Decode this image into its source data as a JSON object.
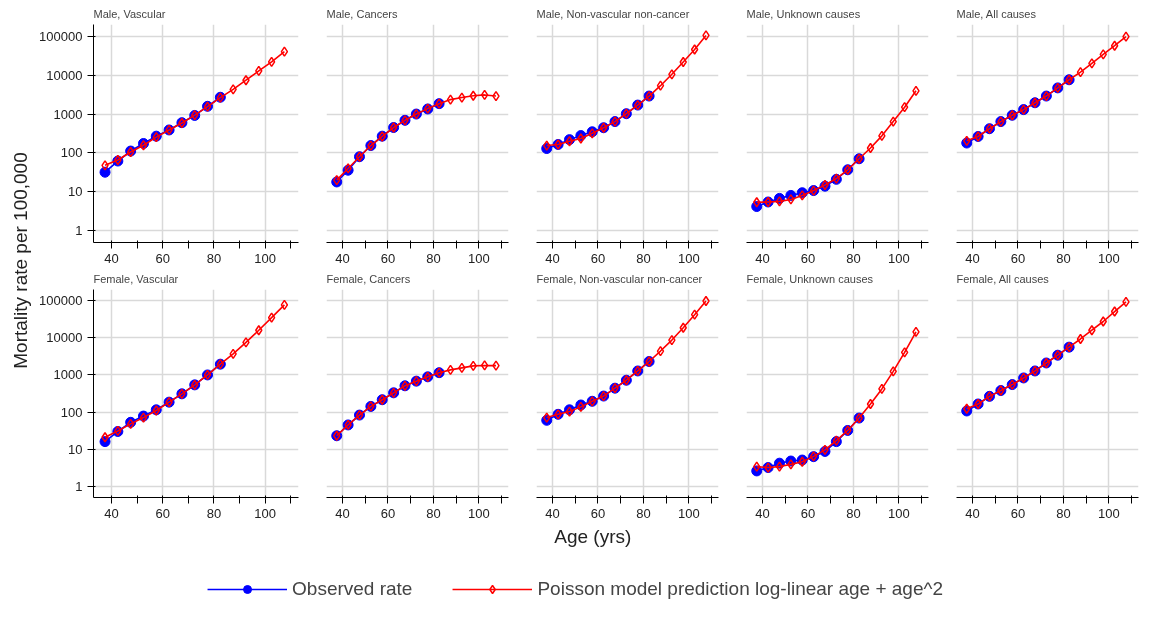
{
  "chart_data": [
    {
      "type": "line",
      "title": "Male, Vascular",
      "ylabel": "Mortality rate per 100,000",
      "log": "y",
      "grid": true,
      "line_style": "solid",
      "xlim": [
        33,
        113
      ],
      "ylim": [
        0.5,
        200000
      ],
      "xticks": [
        40,
        {
          "value": 50,
          "label": null
        },
        60,
        {
          "value": 70,
          "label": null
        },
        80,
        {
          "value": 90,
          "label": null
        },
        100,
        {
          "value": 110,
          "label": null
        }
      ],
      "yticks": [
        1,
        10,
        100,
        1000,
        10000,
        100000
      ],
      "x": [
        37.5,
        42.5,
        47.5,
        52.5,
        57.5,
        62.5,
        67.5,
        72.5,
        77.5,
        82.5,
        87.5,
        92.5,
        97.5,
        102.5,
        107.5
      ],
      "series": [
        {
          "color": "#0000ff",
          "marker": "circle",
          "values": [
            32,
            62,
            112,
            175,
            270,
            390,
            600,
            920,
            1580,
            2700,
            null,
            null,
            null,
            null,
            null
          ]
        },
        {
          "color": "#ff0000",
          "marker": "diamond",
          "values": [
            48,
            66,
            106,
            158,
            255,
            390,
            590,
            940,
            1550,
            2650,
            4300,
            7400,
            12800,
            22000,
            40000
          ]
        }
      ]
    },
    {
      "type": "line",
      "title": "Male, Cancers",
      "log": "y",
      "grid": true,
      "line_style": "solid",
      "tick_labels": "x",
      "xlim": [
        33,
        113
      ],
      "ylim": [
        0.5,
        200000
      ],
      "xticks": [
        40,
        {
          "value": 50,
          "label": null
        },
        60,
        {
          "value": 70,
          "label": null
        },
        80,
        {
          "value": 90,
          "label": null
        },
        100,
        {
          "value": 110,
          "label": null
        }
      ],
      "yticks": [
        1,
        10,
        100,
        1000,
        10000,
        100000
      ],
      "x": [
        37.5,
        42.5,
        47.5,
        52.5,
        57.5,
        62.5,
        67.5,
        72.5,
        77.5,
        82.5,
        87.5,
        92.5,
        97.5,
        102.5,
        107.5
      ],
      "series": [
        {
          "color": "#0000ff",
          "marker": "circle",
          "values": [
            18,
            36,
            80,
            155,
            270,
            450,
            690,
            1000,
            1350,
            1850,
            null,
            null,
            null,
            null,
            null
          ]
        },
        {
          "color": "#ff0000",
          "marker": "diamond",
          "values": [
            20,
            40,
            80,
            155,
            265,
            450,
            690,
            1000,
            1380,
            1850,
            2350,
            2650,
            2950,
            3100,
            2900
          ]
        }
      ]
    },
    {
      "type": "line",
      "title": "Male, Non-vascular non-cancer",
      "log": "y",
      "grid": true,
      "line_style": "solid",
      "tick_labels": "x",
      "xlim": [
        33,
        113
      ],
      "ylim": [
        0.5,
        200000
      ],
      "xticks": [
        40,
        {
          "value": 50,
          "label": null
        },
        60,
        {
          "value": 70,
          "label": null
        },
        80,
        {
          "value": 90,
          "label": null
        },
        100,
        {
          "value": 110,
          "label": null
        }
      ],
      "yticks": [
        1,
        10,
        100,
        1000,
        10000,
        100000
      ],
      "x": [
        37.5,
        42.5,
        47.5,
        52.5,
        57.5,
        62.5,
        67.5,
        72.5,
        77.5,
        82.5,
        87.5,
        92.5,
        97.5,
        102.5,
        107.5
      ],
      "series": [
        {
          "color": "#0000ff",
          "marker": "circle",
          "values": [
            130,
            165,
            220,
            280,
            350,
            445,
            640,
            1020,
            1700,
            2900,
            null,
            null,
            null,
            null,
            null
          ]
        },
        {
          "color": "#ff0000",
          "marker": "diamond",
          "values": [
            155,
            165,
            200,
            235,
            320,
            445,
            640,
            1020,
            1700,
            2900,
            5350,
            10500,
            21700,
            45500,
            105000
          ]
        }
      ]
    },
    {
      "type": "line",
      "title": "Male, Unknown causes",
      "log": "y",
      "grid": true,
      "line_style": "solid",
      "tick_labels": "x",
      "xlim": [
        33,
        113
      ],
      "ylim": [
        0.5,
        200000
      ],
      "xticks": [
        40,
        {
          "value": 50,
          "label": null
        },
        60,
        {
          "value": 70,
          "label": null
        },
        80,
        {
          "value": 90,
          "label": null
        },
        100,
        {
          "value": 110,
          "label": null
        }
      ],
      "yticks": [
        1,
        10,
        100,
        1000,
        10000,
        100000
      ],
      "x": [
        37.5,
        42.5,
        47.5,
        52.5,
        57.5,
        62.5,
        67.5,
        72.5,
        77.5,
        82.5,
        87.5,
        92.5,
        97.5,
        102.5,
        107.5
      ],
      "series": [
        {
          "color": "#0000ff",
          "marker": "circle",
          "values": [
            4.2,
            5.5,
            6.8,
            8.1,
            9.5,
            10.8,
            14,
            21,
            37,
            71,
            null,
            null,
            null,
            null,
            null
          ]
        },
        {
          "color": "#ff0000",
          "marker": "diamond",
          "values": [
            5.4,
            5.5,
            5.7,
            6.4,
            8.1,
            10.8,
            15,
            22,
            37,
            71,
            134,
            275,
            640,
            1500,
            3950
          ]
        }
      ]
    },
    {
      "type": "line",
      "title": "Male, All causes",
      "log": "y",
      "grid": true,
      "line_style": "solid",
      "tick_labels": "x",
      "xlim": [
        33,
        113
      ],
      "ylim": [
        0.5,
        200000
      ],
      "xticks": [
        40,
        {
          "value": 50,
          "label": null
        },
        60,
        {
          "value": 70,
          "label": null
        },
        80,
        {
          "value": 90,
          "label": null
        },
        100,
        {
          "value": 110,
          "label": null
        }
      ],
      "yticks": [
        1,
        10,
        100,
        1000,
        10000,
        100000
      ],
      "x": [
        37.5,
        42.5,
        47.5,
        52.5,
        57.5,
        62.5,
        67.5,
        72.5,
        77.5,
        82.5,
        87.5,
        92.5,
        97.5,
        102.5,
        107.5
      ],
      "series": [
        {
          "color": "#0000ff",
          "marker": "circle",
          "values": [
            180,
            265,
            420,
            640,
            930,
            1300,
            1950,
            2900,
            4700,
            7600,
            null,
            null,
            null,
            null,
            null
          ]
        },
        {
          "color": "#ff0000",
          "marker": "diamond",
          "values": [
            205,
            265,
            420,
            640,
            930,
            1300,
            1950,
            2900,
            4700,
            7600,
            12000,
            20000,
            34000,
            57000,
            98000
          ]
        }
      ]
    },
    {
      "type": "line",
      "title": "Female, Vascular",
      "log": "y",
      "grid": true,
      "line_style": "solid",
      "xlim": [
        33,
        113
      ],
      "ylim": [
        0.5,
        200000
      ],
      "xticks": [
        40,
        {
          "value": 50,
          "label": null
        },
        60,
        {
          "value": 70,
          "label": null
        },
        80,
        {
          "value": 90,
          "label": null
        },
        100,
        {
          "value": 110,
          "label": null
        }
      ],
      "yticks": [
        1,
        10,
        100,
        1000,
        10000,
        100000
      ],
      "x": [
        37.5,
        42.5,
        47.5,
        52.5,
        57.5,
        62.5,
        67.5,
        72.5,
        77.5,
        82.5,
        87.5,
        92.5,
        97.5,
        102.5,
        107.5
      ],
      "series": [
        {
          "color": "#0000ff",
          "marker": "circle",
          "values": [
            16,
            30,
            53,
            78,
            115,
            185,
            310,
            540,
            1000,
            1950,
            null,
            null,
            null,
            null,
            null
          ]
        },
        {
          "color": "#ff0000",
          "marker": "diamond",
          "values": [
            21,
            31,
            48,
            71,
            110,
            185,
            310,
            540,
            1000,
            1950,
            3700,
            7500,
            16000,
            35000,
            77000
          ]
        }
      ]
    },
    {
      "type": "line",
      "title": "Female, Cancers",
      "log": "y",
      "grid": true,
      "line_style": "solid",
      "tick_labels": "x",
      "xlim": [
        33,
        113
      ],
      "ylim": [
        0.5,
        200000
      ],
      "xticks": [
        40,
        {
          "value": 50,
          "label": null
        },
        60,
        {
          "value": 70,
          "label": null
        },
        80,
        {
          "value": 90,
          "label": null
        },
        100,
        {
          "value": 110,
          "label": null
        }
      ],
      "yticks": [
        1,
        10,
        100,
        1000,
        10000,
        100000
      ],
      "x": [
        37.5,
        42.5,
        47.5,
        52.5,
        57.5,
        62.5,
        67.5,
        72.5,
        77.5,
        82.5,
        87.5,
        92.5,
        97.5,
        102.5,
        107.5
      ],
      "series": [
        {
          "color": "#0000ff",
          "marker": "circle",
          "values": [
            23,
            45,
            83,
            142,
            215,
            330,
            510,
            680,
            890,
            1150,
            null,
            null,
            null,
            null,
            null
          ]
        },
        {
          "color": "#ff0000",
          "marker": "diamond",
          "values": [
            23,
            45,
            83,
            142,
            215,
            330,
            510,
            680,
            890,
            1150,
            1370,
            1550,
            1750,
            1800,
            1780
          ]
        }
      ]
    },
    {
      "type": "line",
      "title": "Female, Non-vascular non-cancer",
      "xlabel": "Age (yrs)",
      "legend": "bottom",
      "log": "y",
      "grid": true,
      "line_style": "solid",
      "tick_labels": "x",
      "xlim": [
        33,
        113
      ],
      "ylim": [
        0.5,
        200000
      ],
      "xticks": [
        40,
        {
          "value": 50,
          "label": null
        },
        60,
        {
          "value": 70,
          "label": null
        },
        80,
        {
          "value": 90,
          "label": null
        },
        100,
        {
          "value": 110,
          "label": null
        }
      ],
      "yticks": [
        1,
        10,
        100,
        1000,
        10000,
        100000
      ],
      "x": [
        37.5,
        42.5,
        47.5,
        52.5,
        57.5,
        62.5,
        67.5,
        72.5,
        77.5,
        82.5,
        87.5,
        92.5,
        97.5,
        102.5,
        107.5
      ],
      "series": [
        {
          "name": "Observed rate",
          "color": "#0000ff",
          "marker": "circle",
          "values": [
            60,
            87,
            115,
            155,
            195,
            270,
            440,
            720,
            1280,
            2300,
            null,
            null,
            null,
            null,
            null
          ]
        },
        {
          "name": "Poisson model prediction log-linear age + age^2",
          "color": "#ff0000",
          "marker": "diamond",
          "values": [
            71,
            87,
            103,
            138,
            195,
            270,
            440,
            720,
            1280,
            2300,
            4400,
            8700,
            18700,
            42000,
            98000
          ]
        }
      ]
    },
    {
      "type": "line",
      "title": "Female, Unknown causes",
      "log": "y",
      "grid": true,
      "line_style": "solid",
      "tick_labels": "x",
      "xlim": [
        33,
        113
      ],
      "ylim": [
        0.5,
        200000
      ],
      "xticks": [
        40,
        {
          "value": 50,
          "label": null
        },
        60,
        {
          "value": 70,
          "label": null
        },
        80,
        {
          "value": 90,
          "label": null
        },
        100,
        {
          "value": 110,
          "label": null
        }
      ],
      "yticks": [
        1,
        10,
        100,
        1000,
        10000,
        100000
      ],
      "x": [
        37.5,
        42.5,
        47.5,
        52.5,
        57.5,
        62.5,
        67.5,
        72.5,
        77.5,
        82.5,
        87.5,
        92.5,
        97.5,
        102.5,
        107.5
      ],
      "series": [
        {
          "color": "#0000ff",
          "marker": "circle",
          "values": [
            2.6,
            3.2,
            4.2,
            4.8,
            5.1,
            6.3,
            8.7,
            16,
            32,
            69,
            null,
            null,
            null,
            null,
            null
          ]
        },
        {
          "color": "#ff0000",
          "marker": "diamond",
          "values": [
            3.4,
            3.2,
            3.4,
            3.9,
            4.6,
            6.4,
            9.6,
            17,
            32,
            69,
            165,
            420,
            1250,
            4050,
            14400
          ]
        }
      ]
    },
    {
      "type": "line",
      "title": "Female, All causes",
      "log": "y",
      "grid": true,
      "line_style": "solid",
      "tick_labels": "x",
      "xlim": [
        33,
        113
      ],
      "ylim": [
        0.5,
        200000
      ],
      "xticks": [
        40,
        {
          "value": 50,
          "label": null
        },
        60,
        {
          "value": 70,
          "label": null
        },
        80,
        {
          "value": 90,
          "label": null
        },
        100,
        {
          "value": 110,
          "label": null
        }
      ],
      "yticks": [
        1,
        10,
        100,
        1000,
        10000,
        100000
      ],
      "x": [
        37.5,
        42.5,
        47.5,
        52.5,
        57.5,
        62.5,
        67.5,
        72.5,
        77.5,
        82.5,
        87.5,
        92.5,
        97.5,
        102.5,
        107.5
      ],
      "series": [
        {
          "color": "#0000ff",
          "marker": "circle",
          "values": [
            107,
            165,
            265,
            380,
            550,
            830,
            1280,
            2100,
            3400,
            5600,
            null,
            null,
            null,
            null,
            null
          ]
        },
        {
          "color": "#ff0000",
          "marker": "diamond",
          "values": [
            123,
            165,
            265,
            380,
            550,
            830,
            1280,
            2100,
            3400,
            5600,
            9300,
            16000,
            27500,
            51000,
            93000
          ]
        }
      ]
    }
  ]
}
